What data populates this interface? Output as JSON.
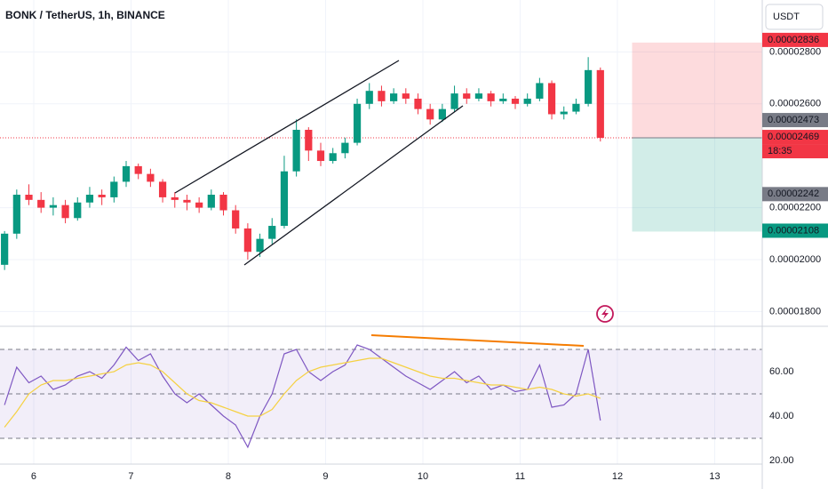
{
  "chart_data": [
    {
      "type": "candlestick",
      "title": "BONK / TetherUS, 1h, BINANCE",
      "currency": "USDT",
      "x": [
        5.7,
        5.825,
        5.95,
        6.075,
        6.2,
        6.325,
        6.45,
        6.575,
        6.7,
        6.825,
        6.95,
        7.075,
        7.2,
        7.325,
        7.45,
        7.575,
        7.7,
        7.825,
        7.95,
        8.075,
        8.2,
        8.325,
        8.45,
        8.575,
        8.7,
        8.825,
        8.95,
        9.075,
        9.2,
        9.325,
        9.45,
        9.575,
        9.7,
        9.825,
        9.95,
        10.075,
        10.2,
        10.325,
        10.45,
        10.575,
        10.7,
        10.825,
        10.95,
        11.075,
        11.2,
        11.325,
        11.45,
        11.575,
        11.7,
        11.825
      ],
      "open": [
        1.98e-05,
        2.1e-05,
        2.25e-05,
        2.23e-05,
        2.2e-05,
        2.21e-05,
        2.16e-05,
        2.22e-05,
        2.25e-05,
        2.24e-05,
        2.3e-05,
        2.36e-05,
        2.33e-05,
        2.3e-05,
        2.24e-05,
        2.23e-05,
        2.22e-05,
        2.2e-05,
        2.25e-05,
        2.19e-05,
        2.12e-05,
        2.03e-05,
        2.08e-05,
        2.13e-05,
        2.34e-05,
        2.5e-05,
        2.42e-05,
        2.38e-05,
        2.41e-05,
        2.45e-05,
        2.6e-05,
        2.65e-05,
        2.61e-05,
        2.64e-05,
        2.62e-05,
        2.58e-05,
        2.54e-05,
        2.58e-05,
        2.64e-05,
        2.62e-05,
        2.64e-05,
        2.61e-05,
        2.62e-05,
        2.6e-05,
        2.62e-05,
        2.68e-05,
        2.56e-05,
        2.57e-05,
        2.6e-05,
        2.73e-05
      ],
      "high": [
        2.11e-05,
        2.27e-05,
        2.29e-05,
        2.26e-05,
        2.24e-05,
        2.23e-05,
        2.24e-05,
        2.28e-05,
        2.27e-05,
        2.32e-05,
        2.38e-05,
        2.37e-05,
        2.35e-05,
        2.31e-05,
        2.26e-05,
        2.25e-05,
        2.24e-05,
        2.27e-05,
        2.26e-05,
        2.21e-05,
        2.14e-05,
        2.1e-05,
        2.16e-05,
        2.4e-05,
        2.54e-05,
        2.51e-05,
        2.45e-05,
        2.43e-05,
        2.47e-05,
        2.62e-05,
        2.68e-05,
        2.67e-05,
        2.66e-05,
        2.66e-05,
        2.64e-05,
        2.6e-05,
        2.6e-05,
        2.67e-05,
        2.66e-05,
        2.66e-05,
        2.65e-05,
        2.64e-05,
        2.63e-05,
        2.64e-05,
        2.7e-05,
        2.69e-05,
        2.59e-05,
        2.62e-05,
        2.78e-05,
        2.74e-05
      ],
      "low": [
        1.96e-05,
        2.08e-05,
        2.21e-05,
        2.18e-05,
        2.17e-05,
        2.14e-05,
        2.15e-05,
        2.2e-05,
        2.21e-05,
        2.22e-05,
        2.28e-05,
        2.31e-05,
        2.28e-05,
        2.22e-05,
        2.2e-05,
        2.19e-05,
        2.18e-05,
        2.19e-05,
        2.17e-05,
        2.1e-05,
        2e-05,
        2.01e-05,
        2.06e-05,
        2.12e-05,
        2.32e-05,
        2.38e-05,
        2.36e-05,
        2.37e-05,
        2.39e-05,
        2.44e-05,
        2.58e-05,
        2.59e-05,
        2.6e-05,
        2.6e-05,
        2.56e-05,
        2.52e-05,
        2.53e-05,
        2.57e-05,
        2.6e-05,
        2.61e-05,
        2.59e-05,
        2.6e-05,
        2.58e-05,
        2.59e-05,
        2.61e-05,
        2.54e-05,
        2.54e-05,
        2.56e-05,
        2.59e-05,
        2.455e-05
      ],
      "close": [
        2.1e-05,
        2.25e-05,
        2.23e-05,
        2.2e-05,
        2.21e-05,
        2.16e-05,
        2.22e-05,
        2.25e-05,
        2.24e-05,
        2.3e-05,
        2.36e-05,
        2.33e-05,
        2.3e-05,
        2.24e-05,
        2.23e-05,
        2.22e-05,
        2.2e-05,
        2.25e-05,
        2.19e-05,
        2.12e-05,
        2.03e-05,
        2.08e-05,
        2.13e-05,
        2.34e-05,
        2.5e-05,
        2.42e-05,
        2.38e-05,
        2.41e-05,
        2.45e-05,
        2.6e-05,
        2.65e-05,
        2.61e-05,
        2.64e-05,
        2.62e-05,
        2.58e-05,
        2.54e-05,
        2.58e-05,
        2.64e-05,
        2.62e-05,
        2.64e-05,
        2.61e-05,
        2.62e-05,
        2.6e-05,
        2.62e-05,
        2.68e-05,
        2.56e-05,
        2.57e-05,
        2.6e-05,
        2.73e-05,
        2.469e-05
      ],
      "up_color": "#089981",
      "down_color": "#f23645",
      "xlim": [
        5.653,
        13.489
      ],
      "xticks": [
        6,
        7,
        8,
        9,
        10,
        11,
        12,
        13
      ],
      "ylim": [
        1.75e-05,
        3e-05
      ],
      "yticks": [
        {
          "value": 1.8e-05,
          "label": "0.00001800"
        },
        {
          "value": 2e-05,
          "label": "0.00002000"
        },
        {
          "value": 2.2e-05,
          "label": "0.00002200"
        },
        {
          "value": 2.6e-05,
          "label": "0.00002600"
        },
        {
          "value": 2.8e-05,
          "label": "0.00002800"
        }
      ],
      "grid": true,
      "position": {
        "target": 2.836e-05,
        "entry": 2.469e-05,
        "stop": 2.108e-05,
        "countdown": "18:35",
        "x_start": 12.151
      },
      "markers": [
        2.473e-05,
        2.242e-05
      ]
    },
    {
      "type": "line",
      "series": [
        {
          "color": "#7e57c2",
          "values": [
            45,
            62,
            55,
            58,
            52,
            54,
            58,
            60,
            57,
            63,
            71,
            65,
            68,
            58,
            50,
            46,
            50,
            45,
            40,
            36,
            26,
            40,
            50,
            68,
            70,
            60,
            56,
            60,
            63,
            72,
            70,
            66,
            62,
            58,
            55,
            52,
            56,
            60,
            55,
            58,
            52,
            54,
            51,
            52,
            63,
            44,
            45,
            50,
            70,
            38
          ]
        },
        {
          "color": "#f5d142",
          "values": [
            35,
            42,
            50,
            54,
            56,
            56,
            57,
            58,
            59,
            60,
            63,
            64,
            63,
            60,
            55,
            50,
            47,
            46,
            44,
            42,
            40,
            40,
            43,
            50,
            56,
            60,
            62,
            63,
            64,
            65,
            66,
            66,
            64,
            62,
            60,
            58,
            57,
            57,
            56,
            55,
            54,
            54,
            53,
            52,
            53,
            52,
            50,
            49,
            50,
            48
          ]
        }
      ],
      "ylim": [
        18.4,
        80
      ],
      "yticks": [
        {
          "value": 60,
          "label": "60.00"
        },
        {
          "value": 40,
          "label": "40.00"
        },
        {
          "value": 20,
          "label": "20.00"
        }
      ],
      "levels": [
        70,
        50,
        30
      ]
    }
  ]
}
